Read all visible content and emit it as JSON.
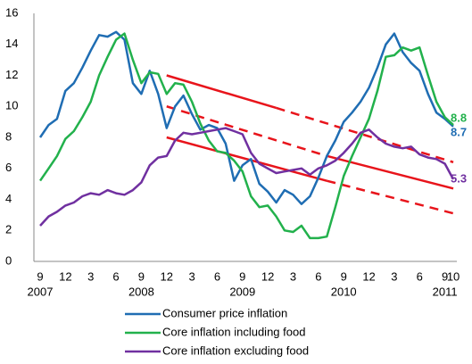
{
  "chart_data": {
    "type": "line",
    "x": [
      "2007-09",
      "2007-10",
      "2007-11",
      "2007-12",
      "2008-01",
      "2008-02",
      "2008-03",
      "2008-04",
      "2008-05",
      "2008-06",
      "2008-07",
      "2008-08",
      "2008-09",
      "2008-10",
      "2008-11",
      "2008-12",
      "2009-01",
      "2009-02",
      "2009-03",
      "2009-04",
      "2009-05",
      "2009-06",
      "2009-07",
      "2009-08",
      "2009-09",
      "2009-10",
      "2009-11",
      "2009-12",
      "2010-01",
      "2010-02",
      "2010-03",
      "2010-04",
      "2010-05",
      "2010-06",
      "2010-07",
      "2010-08",
      "2010-09",
      "2010-10",
      "2010-11",
      "2010-12",
      "2011-01",
      "2011-02",
      "2011-03",
      "2011-04",
      "2011-05",
      "2011-06",
      "2011-07",
      "2011-08",
      "2011-09",
      "2011-10"
    ],
    "series": [
      {
        "name": "Consumer price inflation",
        "color": "#1f6db3",
        "values": [
          8.0,
          8.8,
          9.2,
          11.0,
          11.5,
          12.5,
          13.6,
          14.6,
          14.5,
          14.8,
          14.3,
          11.5,
          10.8,
          12.3,
          10.8,
          8.6,
          10.0,
          10.7,
          9.5,
          8.5,
          8.8,
          8.6,
          7.6,
          5.2,
          6.2,
          6.6,
          5.0,
          4.5,
          3.8,
          4.6,
          4.3,
          3.7,
          4.2,
          5.4,
          6.8,
          7.8,
          9.0,
          9.6,
          10.3,
          11.2,
          12.5,
          14.0,
          14.7,
          13.5,
          12.8,
          12.3,
          10.8,
          9.6,
          9.2,
          8.7
        ]
      },
      {
        "name": "Core inflation including food",
        "color": "#22b14c",
        "values": [
          5.2,
          6.0,
          6.8,
          7.9,
          8.4,
          9.3,
          10.3,
          12.0,
          13.2,
          14.3,
          14.7,
          13.0,
          11.5,
          12.2,
          12.1,
          10.8,
          11.5,
          11.4,
          10.3,
          8.9,
          7.8,
          7.1,
          7.0,
          6.5,
          5.8,
          4.2,
          3.5,
          3.6,
          2.9,
          2.0,
          1.9,
          2.3,
          1.5,
          1.5,
          1.6,
          3.5,
          5.5,
          6.8,
          8.0,
          9.2,
          11.0,
          13.2,
          13.3,
          13.8,
          13.6,
          13.8,
          12.0,
          10.3,
          9.3,
          8.8
        ]
      },
      {
        "name": "Core inflation excluding food",
        "color": "#7030a0",
        "values": [
          2.3,
          2.9,
          3.2,
          3.6,
          3.8,
          4.2,
          4.4,
          4.3,
          4.6,
          4.4,
          4.3,
          4.6,
          5.1,
          6.2,
          6.7,
          6.8,
          7.8,
          8.3,
          8.2,
          8.3,
          8.4,
          8.5,
          8.6,
          8.4,
          8.2,
          7.0,
          6.3,
          6.0,
          5.7,
          5.8,
          5.9,
          6.0,
          5.6,
          6.0,
          6.2,
          6.5,
          7.0,
          7.6,
          8.3,
          8.5,
          8.0,
          7.6,
          7.4,
          7.3,
          7.4,
          6.9,
          6.7,
          6.6,
          6.3,
          5.3
        ]
      }
    ],
    "trend_lines": [
      {
        "color": "#e8141b",
        "dashed": false,
        "x": [
          "2008-12",
          "2010-01"
        ],
        "values": [
          12.0,
          9.9
        ]
      },
      {
        "color": "#e8141b",
        "dashed": true,
        "x": [
          "2010-01",
          "2011-10"
        ],
        "values": [
          9.9,
          6.4
        ]
      },
      {
        "color": "#e8141b",
        "dashed": true,
        "x": [
          "2008-12",
          "2010-07"
        ],
        "values": [
          10.0,
          6.8
        ]
      },
      {
        "color": "#e8141b",
        "dashed": false,
        "x": [
          "2010-07",
          "2011-10"
        ],
        "values": [
          6.8,
          4.7
        ]
      },
      {
        "color": "#e8141b",
        "dashed": false,
        "x": [
          "2008-12",
          "2010-07"
        ],
        "values": [
          8.0,
          5.2
        ]
      },
      {
        "color": "#e8141b",
        "dashed": true,
        "x": [
          "2010-07",
          "2011-10"
        ],
        "values": [
          5.2,
          3.1
        ]
      }
    ],
    "ylim": [
      0,
      16
    ],
    "yticks": [
      0,
      2,
      4,
      6,
      8,
      10,
      12,
      14,
      16
    ],
    "xticks": [
      {
        "value": "2007-09",
        "label": "9"
      },
      {
        "value": "2007-12",
        "label": "12"
      },
      {
        "value": "2008-03",
        "label": "3"
      },
      {
        "value": "2008-06",
        "label": "6"
      },
      {
        "value": "2008-09",
        "label": "9"
      },
      {
        "value": "2008-12",
        "label": "12"
      },
      {
        "value": "2009-03",
        "label": "3"
      },
      {
        "value": "2009-06",
        "label": "6"
      },
      {
        "value": "2009-09",
        "label": "9"
      },
      {
        "value": "2009-12",
        "label": "12"
      },
      {
        "value": "2010-03",
        "label": "3"
      },
      {
        "value": "2010-06",
        "label": "6"
      },
      {
        "value": "2010-09",
        "label": "9"
      },
      {
        "value": "2010-12",
        "label": "12"
      },
      {
        "value": "2011-03",
        "label": "3"
      },
      {
        "value": "2011-06",
        "label": "6"
      },
      {
        "value": "2011-09",
        "label": "9"
      },
      {
        "value": "2011-10",
        "label": "10"
      }
    ],
    "year_labels": [
      {
        "value": "2007-09",
        "label": "2007"
      },
      {
        "value": "2008-09",
        "label": "2008"
      },
      {
        "value": "2009-09",
        "label": "2009"
      },
      {
        "value": "2010-09",
        "label": "2010"
      },
      {
        "value": "2011-09",
        "label": "2011"
      }
    ],
    "grid": false
  }
}
